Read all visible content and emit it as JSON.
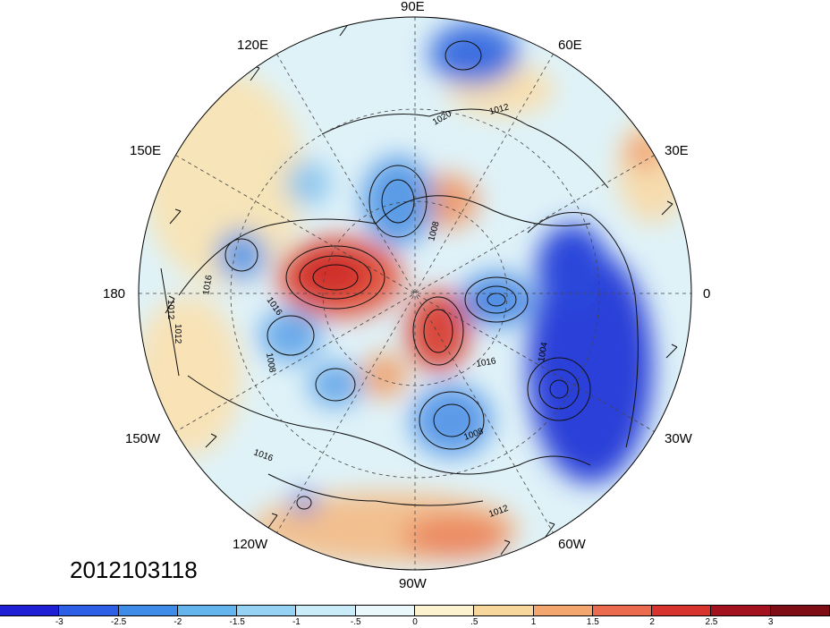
{
  "map": {
    "longitude_labels": [
      "90E",
      "60E",
      "30E",
      "0",
      "30W",
      "60W",
      "90W",
      "120W",
      "150W",
      "180",
      "150E",
      "120E"
    ],
    "contour_labels": [
      "1020",
      "1012",
      "1008",
      "1016",
      "1016",
      "1012",
      "1012",
      "1016",
      "1008",
      "1016",
      "1008",
      "1004",
      "1012"
    ],
    "date_label": "2012103118"
  },
  "colorbar": {
    "ticks": [
      "-3",
      "-2.5",
      "-2",
      "-1.5",
      "-1",
      "-.5",
      "0",
      ".5",
      "1",
      "1.5",
      "2",
      "2.5",
      "3"
    ],
    "colors": [
      "#1f1fd6",
      "#2d5fe6",
      "#3f8ce8",
      "#64b4ee",
      "#96d2f3",
      "#c9ecf8",
      "#eaf7fb",
      "#fdf2cf",
      "#f8d79c",
      "#f3a66d",
      "#ea6b4e",
      "#d7342f",
      "#a3121f",
      "#7e0d16"
    ]
  }
}
